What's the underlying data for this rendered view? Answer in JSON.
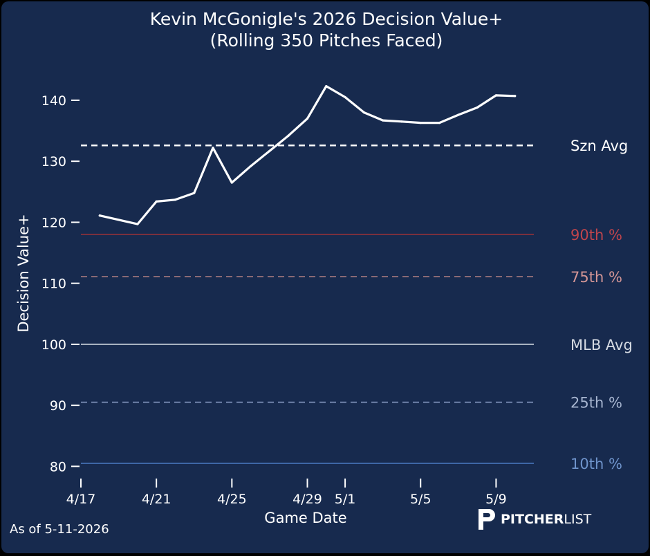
{
  "footer": {
    "as_of": "As of 5-11-2026"
  },
  "brand": {
    "name_bold": "PITCHER",
    "name_light": "LIST",
    "logo_icon": "pitcherlist-p-logo-icon"
  },
  "chart_data": {
    "type": "line",
    "title": "Kevin McGonigle's 2026 Decision Value+",
    "subtitle": "(Rolling 350 Pitches Faced)",
    "xlabel": "Game Date",
    "ylabel": "Decision Value+",
    "ylim": [
      78,
      146
    ],
    "yticks": [
      80,
      90,
      100,
      110,
      120,
      130,
      140
    ],
    "xlim": [
      "2026-04-17",
      "2026-05-11"
    ],
    "xticks": [
      {
        "date": "2026-04-17",
        "label": "4/17"
      },
      {
        "date": "2026-04-21",
        "label": "4/21"
      },
      {
        "date": "2026-04-25",
        "label": "4/25"
      },
      {
        "date": "2026-04-29",
        "label": "4/29"
      },
      {
        "date": "2026-05-01",
        "label": "5/1"
      },
      {
        "date": "2026-05-05",
        "label": "5/5"
      },
      {
        "date": "2026-05-09",
        "label": "5/9"
      }
    ],
    "grid": false,
    "series": [
      {
        "color": "#ffffff",
        "points": [
          {
            "x": "2026-04-18",
            "y": 121.1
          },
          {
            "x": "2026-04-20",
            "y": 119.7
          },
          {
            "x": "2026-04-21",
            "y": 123.4
          },
          {
            "x": "2026-04-22",
            "y": 123.7
          },
          {
            "x": "2026-04-23",
            "y": 124.8
          },
          {
            "x": "2026-04-24",
            "y": 132.2
          },
          {
            "x": "2026-04-25",
            "y": 126.5
          },
          {
            "x": "2026-04-26",
            "y": 129.2
          },
          {
            "x": "2026-04-27",
            "y": 131.7
          },
          {
            "x": "2026-04-28",
            "y": 134.2
          },
          {
            "x": "2026-04-29",
            "y": 137.0
          },
          {
            "x": "2026-04-30",
            "y": 142.3
          },
          {
            "x": "2026-05-01",
            "y": 140.5
          },
          {
            "x": "2026-05-02",
            "y": 138.0
          },
          {
            "x": "2026-05-03",
            "y": 136.7
          },
          {
            "x": "2026-05-04",
            "y": 136.5
          },
          {
            "x": "2026-05-05",
            "y": 136.3
          },
          {
            "x": "2026-05-06",
            "y": 136.3
          },
          {
            "x": "2026-05-07",
            "y": 137.6
          },
          {
            "x": "2026-05-08",
            "y": 138.8
          },
          {
            "x": "2026-05-09",
            "y": 140.8
          },
          {
            "x": "2026-05-10",
            "y": 140.7
          }
        ]
      }
    ],
    "reference_lines": [
      {
        "label": "Szn Avg",
        "value": 132.6,
        "color": "#ffffff",
        "label_color": "#ffffff",
        "dash": true
      },
      {
        "label": "90th %",
        "value": 118.0,
        "color": "#7a2f3d",
        "label_color": "#c0454c",
        "dash": false
      },
      {
        "label": "75th %",
        "value": 111.1,
        "color": "#8a6a75",
        "label_color": "#d49696",
        "dash": true
      },
      {
        "label": "MLB Avg",
        "value": 100.0,
        "color": "#b4bcc9",
        "label_color": "#d6dbe3",
        "dash": false
      },
      {
        "label": "25th %",
        "value": 90.5,
        "color": "#7083aa",
        "label_color": "#a7b5d0",
        "dash": true
      },
      {
        "label": "10th %",
        "value": 80.5,
        "color": "#3d66a6",
        "label_color": "#6f94cc",
        "dash": false
      }
    ]
  }
}
